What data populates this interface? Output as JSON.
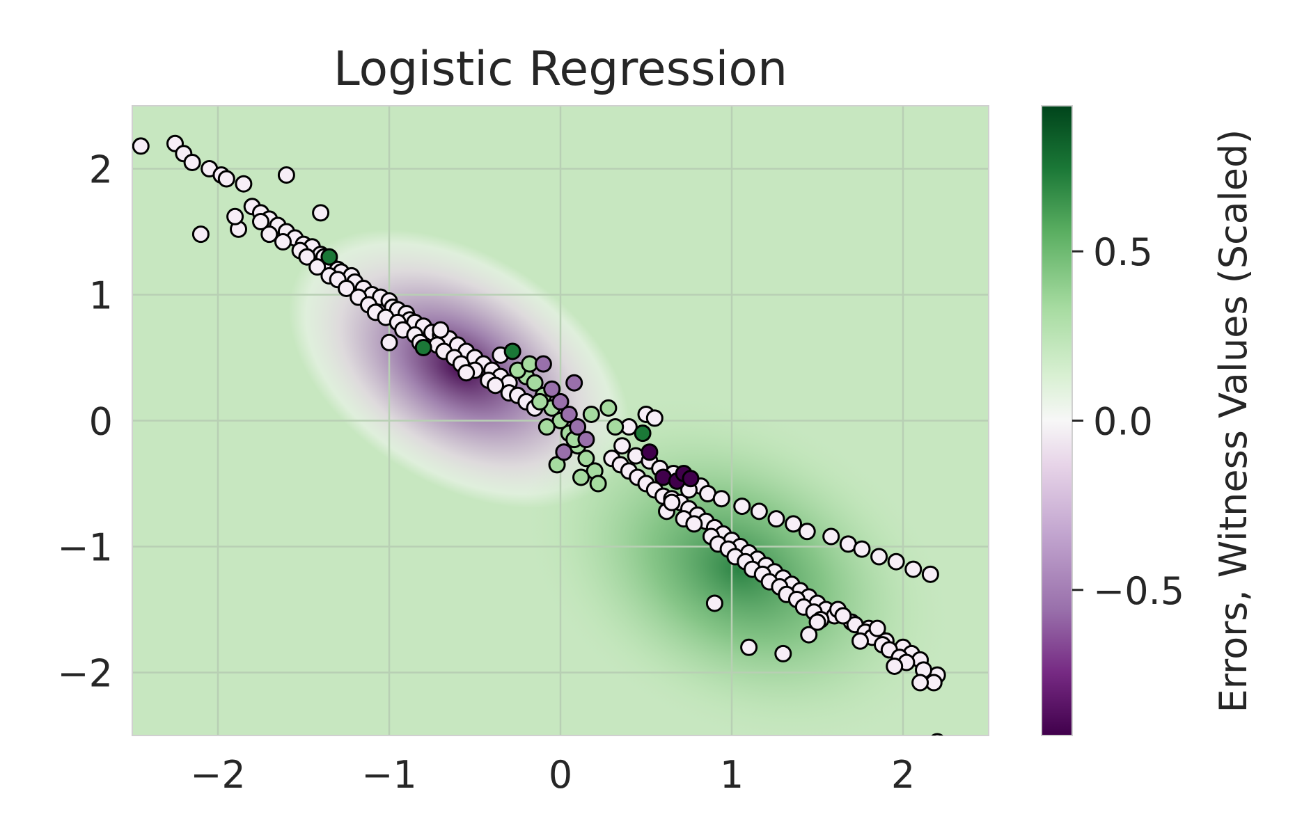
{
  "chart_data": {
    "type": "scatter",
    "title": "Logistic Regression",
    "xlabel": "",
    "ylabel": "",
    "xlim": [
      -2.5,
      2.5
    ],
    "ylim": [
      -2.5,
      2.5
    ],
    "x_ticks": [
      -2,
      -1,
      0,
      1,
      2
    ],
    "y_ticks": [
      -2,
      -1,
      0,
      1,
      2
    ],
    "grid": true,
    "background": "contour field of witness values (purple negative near (-0.5, 0.5), green positive near (1, -1))",
    "colorbar": {
      "label": "Errors, Witness Values (Scaled)",
      "range": [
        -0.93,
        0.93
      ],
      "ticks": [
        0.5,
        0.0,
        -0.5
      ],
      "tick_labels": [
        "0.5",
        "0.0",
        "−0.5"
      ],
      "colormap": "PRGn"
    },
    "colors": {
      "purple_dark": "#40004b",
      "purple_mid": "#9970ab",
      "purple_light": "#e7d4e8",
      "neutral": "#f7f7f7",
      "green_light": "#d9f0d3",
      "green_mid": "#5aae61",
      "green_dark": "#00441b",
      "grid": "#b8cfb4",
      "text": "#262626"
    },
    "series": [
      {
        "x": [
          -2.45,
          -2.25,
          -2.2,
          -2.15,
          -2.05,
          -1.98,
          -1.95,
          -1.85,
          -1.8,
          -1.75,
          -1.7,
          -1.65,
          -1.6,
          -1.55,
          -1.5,
          -1.45,
          -1.4,
          -1.38,
          -1.35,
          -1.3,
          -1.28,
          -1.22,
          -1.2,
          -1.15,
          -1.1,
          -1.05,
          -1.0,
          -0.98,
          -0.95,
          -0.9,
          -0.88,
          -0.85,
          -0.8,
          -0.75,
          -0.7,
          -0.65,
          -0.6,
          -0.55,
          -0.5,
          -0.45,
          -0.4,
          -0.35,
          -0.3,
          -1.88,
          -1.75,
          -1.7,
          -1.62,
          -1.52,
          -1.48,
          -1.42,
          -1.35,
          -1.3,
          -1.25,
          -1.18,
          -1.12,
          -1.08,
          -1.02,
          -0.95,
          -0.92,
          -0.85,
          -0.82,
          -0.72,
          -0.68,
          -0.62,
          -0.58,
          -0.5,
          -0.42,
          -0.38,
          -0.3,
          -0.25,
          -0.2,
          -0.15,
          0.3,
          0.35,
          0.4,
          0.45,
          0.5,
          0.55,
          0.6,
          0.65,
          0.7,
          0.75,
          0.8,
          0.85,
          0.9,
          0.95,
          1.0,
          1.05,
          1.1,
          1.15,
          1.2,
          1.25,
          1.3,
          1.35,
          1.4,
          1.45,
          1.5,
          1.55,
          1.6,
          1.7,
          1.8,
          1.85,
          1.9,
          2.0,
          2.05,
          2.1,
          2.2,
          0.62,
          0.72,
          0.78,
          0.88,
          0.92,
          0.98,
          1.02,
          1.08,
          1.12,
          1.18,
          1.22,
          1.28,
          1.32,
          1.38,
          1.42,
          1.48,
          1.52,
          1.62,
          1.72,
          1.78,
          1.82,
          1.88,
          1.92,
          1.98,
          2.02,
          2.12,
          2.18,
          0.36,
          0.44,
          0.52,
          0.58,
          0.66,
          0.74,
          0.82,
          0.86,
          0.94,
          1.06,
          1.16,
          1.26,
          1.36,
          1.44,
          1.58,
          1.68,
          1.76,
          1.86,
          1.96,
          2.06,
          2.16,
          -2.1,
          -1.9,
          -1.6,
          -1.4,
          -1.0,
          -0.7,
          -0.55,
          -0.35,
          0.4,
          0.5,
          0.55,
          0.65,
          0.75,
          0.9,
          1.1,
          1.3,
          1.45,
          1.5,
          1.65,
          1.75,
          1.85,
          1.95,
          2.1,
          2.2
        ],
        "y": [
          2.18,
          2.2,
          2.12,
          2.05,
          2.0,
          1.95,
          1.92,
          1.88,
          1.7,
          1.65,
          1.6,
          1.55,
          1.5,
          1.45,
          1.4,
          1.38,
          1.32,
          1.3,
          1.25,
          1.2,
          1.18,
          1.15,
          1.1,
          1.05,
          1.0,
          0.98,
          0.95,
          0.9,
          0.88,
          0.85,
          0.8,
          0.78,
          0.75,
          0.7,
          0.68,
          0.65,
          0.6,
          0.55,
          0.5,
          0.45,
          0.4,
          0.35,
          0.3,
          1.52,
          1.58,
          1.48,
          1.42,
          1.35,
          1.3,
          1.22,
          1.15,
          1.12,
          1.05,
          0.98,
          0.92,
          0.86,
          0.82,
          0.78,
          0.72,
          0.68,
          0.62,
          0.6,
          0.55,
          0.5,
          0.45,
          0.4,
          0.32,
          0.28,
          0.22,
          0.2,
          0.15,
          0.1,
          -0.3,
          -0.35,
          -0.4,
          -0.45,
          -0.5,
          -0.55,
          -0.6,
          -0.62,
          -0.65,
          -0.7,
          -0.75,
          -0.8,
          -0.85,
          -0.9,
          -0.95,
          -1.0,
          -1.05,
          -1.1,
          -1.15,
          -1.2,
          -1.25,
          -1.3,
          -1.35,
          -1.4,
          -1.45,
          -1.5,
          -1.55,
          -1.6,
          -1.65,
          -1.7,
          -1.75,
          -1.8,
          -1.85,
          -1.9,
          -2.02,
          -0.72,
          -0.78,
          -0.82,
          -0.92,
          -0.98,
          -1.02,
          -1.08,
          -1.12,
          -1.18,
          -1.22,
          -1.28,
          -1.32,
          -1.38,
          -1.42,
          -1.48,
          -1.52,
          -1.58,
          -1.5,
          -1.62,
          -1.68,
          -1.72,
          -1.78,
          -1.82,
          -1.88,
          -1.92,
          -1.98,
          -2.08,
          -0.2,
          -0.28,
          -0.32,
          -0.38,
          -0.42,
          -0.48,
          -0.52,
          -0.58,
          -0.62,
          -0.68,
          -0.72,
          -0.78,
          -0.82,
          -0.88,
          -0.92,
          -0.98,
          -1.02,
          -1.08,
          -1.12,
          -1.18,
          -1.22,
          1.48,
          1.62,
          1.95,
          1.65,
          0.62,
          0.72,
          0.38,
          0.52,
          -0.05,
          0.05,
          0.02,
          -0.65,
          -0.55,
          -1.45,
          -1.8,
          -1.85,
          -1.7,
          -1.6,
          -1.55,
          -1.75,
          -1.65,
          -1.95,
          -2.08,
          -2.55
        ],
        "point_color": "#f7eef7"
      },
      {
        "x": [
          -0.2,
          -0.15,
          -0.1,
          -0.05,
          0.0,
          0.05,
          0.1,
          0.15,
          0.2,
          -0.25,
          -0.18,
          -0.08,
          0.02,
          0.12,
          0.22,
          0.28,
          0.32,
          -0.12,
          -0.02,
          0.08,
          0.18
        ],
        "y": [
          0.35,
          0.3,
          0.2,
          0.1,
          0.0,
          -0.1,
          -0.2,
          -0.3,
          -0.4,
          0.4,
          0.45,
          -0.05,
          -0.25,
          -0.45,
          -0.5,
          0.1,
          -0.05,
          0.15,
          -0.35,
          -0.15,
          0.05
        ],
        "point_color": "#a6dba0"
      },
      {
        "x": [
          -1.35,
          -0.8,
          -0.28,
          0.48
        ],
        "y": [
          1.3,
          0.58,
          0.55,
          -0.1
        ],
        "point_color": "#1b7837"
      },
      {
        "x": [
          -0.05,
          0.0,
          0.05,
          0.1,
          0.15,
          -0.1,
          0.08,
          0.02
        ],
        "y": [
          0.25,
          0.15,
          0.05,
          -0.05,
          -0.15,
          0.45,
          0.3,
          -0.25
        ],
        "point_color": "#9970ab"
      },
      {
        "x": [
          0.52,
          0.6,
          0.68,
          0.72,
          0.76
        ],
        "y": [
          -0.25,
          -0.45,
          -0.48,
          -0.42,
          -0.46
        ],
        "point_color": "#40004b"
      }
    ]
  }
}
